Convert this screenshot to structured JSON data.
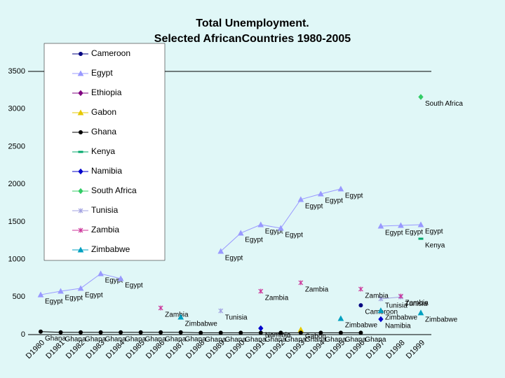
{
  "chart_data": {
    "type": "line",
    "title": "Total Unemployment.",
    "subtitle": "Selected AfricanCountries 1980-2005",
    "categories": [
      "D1980",
      "D1981",
      "D1982",
      "D1983",
      "D1984",
      "D1985",
      "D1986",
      "D1987",
      "D1988",
      "D1989",
      "D1990",
      "D1991",
      "D1992",
      "D1993",
      "D1994",
      "D1995",
      "D1996",
      "D1997",
      "D1998",
      "D1999"
    ],
    "ylim": [
      0,
      3500
    ],
    "yticks": [
      0,
      500,
      1000,
      1500,
      2000,
      2500,
      3000,
      3500
    ],
    "data_labels": true,
    "series": [
      {
        "name": "Cameroon",
        "color": "#000080",
        "marker": "circle",
        "values": [
          null,
          null,
          null,
          null,
          null,
          null,
          null,
          null,
          null,
          null,
          null,
          null,
          null,
          null,
          null,
          null,
          390,
          null,
          null,
          null
        ]
      },
      {
        "name": "Egypt",
        "color": "#9999ff",
        "marker": "triangle",
        "values": [
          530,
          577,
          615,
          810,
          745,
          null,
          null,
          null,
          null,
          1108,
          1350,
          1462,
          1415,
          1797,
          1871,
          1937,
          null,
          1443,
          1452,
          1462
        ]
      },
      {
        "name": "Ethiopia",
        "color": "#800080",
        "marker": "diamond",
        "values": [
          null,
          null,
          null,
          null,
          null,
          null,
          null,
          null,
          null,
          null,
          null,
          null,
          null,
          null,
          null,
          null,
          null,
          null,
          null,
          null
        ]
      },
      {
        "name": "Gabon",
        "color": "#e6c800",
        "marker": "triangle",
        "values": [
          null,
          null,
          null,
          null,
          null,
          null,
          null,
          null,
          null,
          null,
          null,
          null,
          null,
          65,
          null,
          null,
          null,
          null,
          null,
          null
        ]
      },
      {
        "name": "Ghana",
        "color": "#000000",
        "marker": "circle",
        "values": [
          40,
          30,
          30,
          30,
          30,
          30,
          30,
          30,
          25,
          25,
          25,
          25,
          25,
          25,
          25,
          25,
          25,
          null,
          null,
          null
        ]
      },
      {
        "name": "Kenya",
        "color": "#00a86b",
        "marker": "dash",
        "values": [
          null,
          null,
          null,
          null,
          null,
          null,
          null,
          null,
          null,
          null,
          null,
          null,
          null,
          null,
          null,
          null,
          null,
          null,
          null,
          1275
        ]
      },
      {
        "name": "Namibia",
        "color": "#0000cc",
        "marker": "diamond",
        "values": [
          null,
          null,
          null,
          null,
          null,
          null,
          null,
          null,
          null,
          null,
          null,
          84,
          null,
          null,
          null,
          null,
          null,
          205,
          null,
          null
        ]
      },
      {
        "name": "South Africa",
        "color": "#33cc66",
        "marker": "diamond",
        "values": [
          null,
          null,
          null,
          null,
          null,
          null,
          null,
          null,
          null,
          null,
          null,
          null,
          null,
          null,
          null,
          null,
          null,
          null,
          null,
          3160
        ]
      },
      {
        "name": "Tunisia",
        "color": "#a0a0e0",
        "marker": "star",
        "values": [
          null,
          null,
          null,
          null,
          null,
          null,
          null,
          null,
          null,
          316,
          null,
          null,
          null,
          null,
          null,
          null,
          null,
          475,
          500,
          null
        ]
      },
      {
        "name": "Zambia",
        "color": "#cc3399",
        "marker": "star",
        "values": [
          null,
          null,
          null,
          null,
          null,
          null,
          354,
          null,
          null,
          null,
          null,
          577,
          null,
          690,
          null,
          null,
          605,
          null,
          512,
          null
        ]
      },
      {
        "name": "Zimbabwe",
        "color": "#00a0c0",
        "marker": "triangle",
        "values": [
          null,
          null,
          null,
          null,
          null,
          null,
          null,
          233,
          null,
          null,
          null,
          null,
          null,
          null,
          null,
          214,
          null,
          320,
          null,
          290
        ]
      }
    ]
  }
}
